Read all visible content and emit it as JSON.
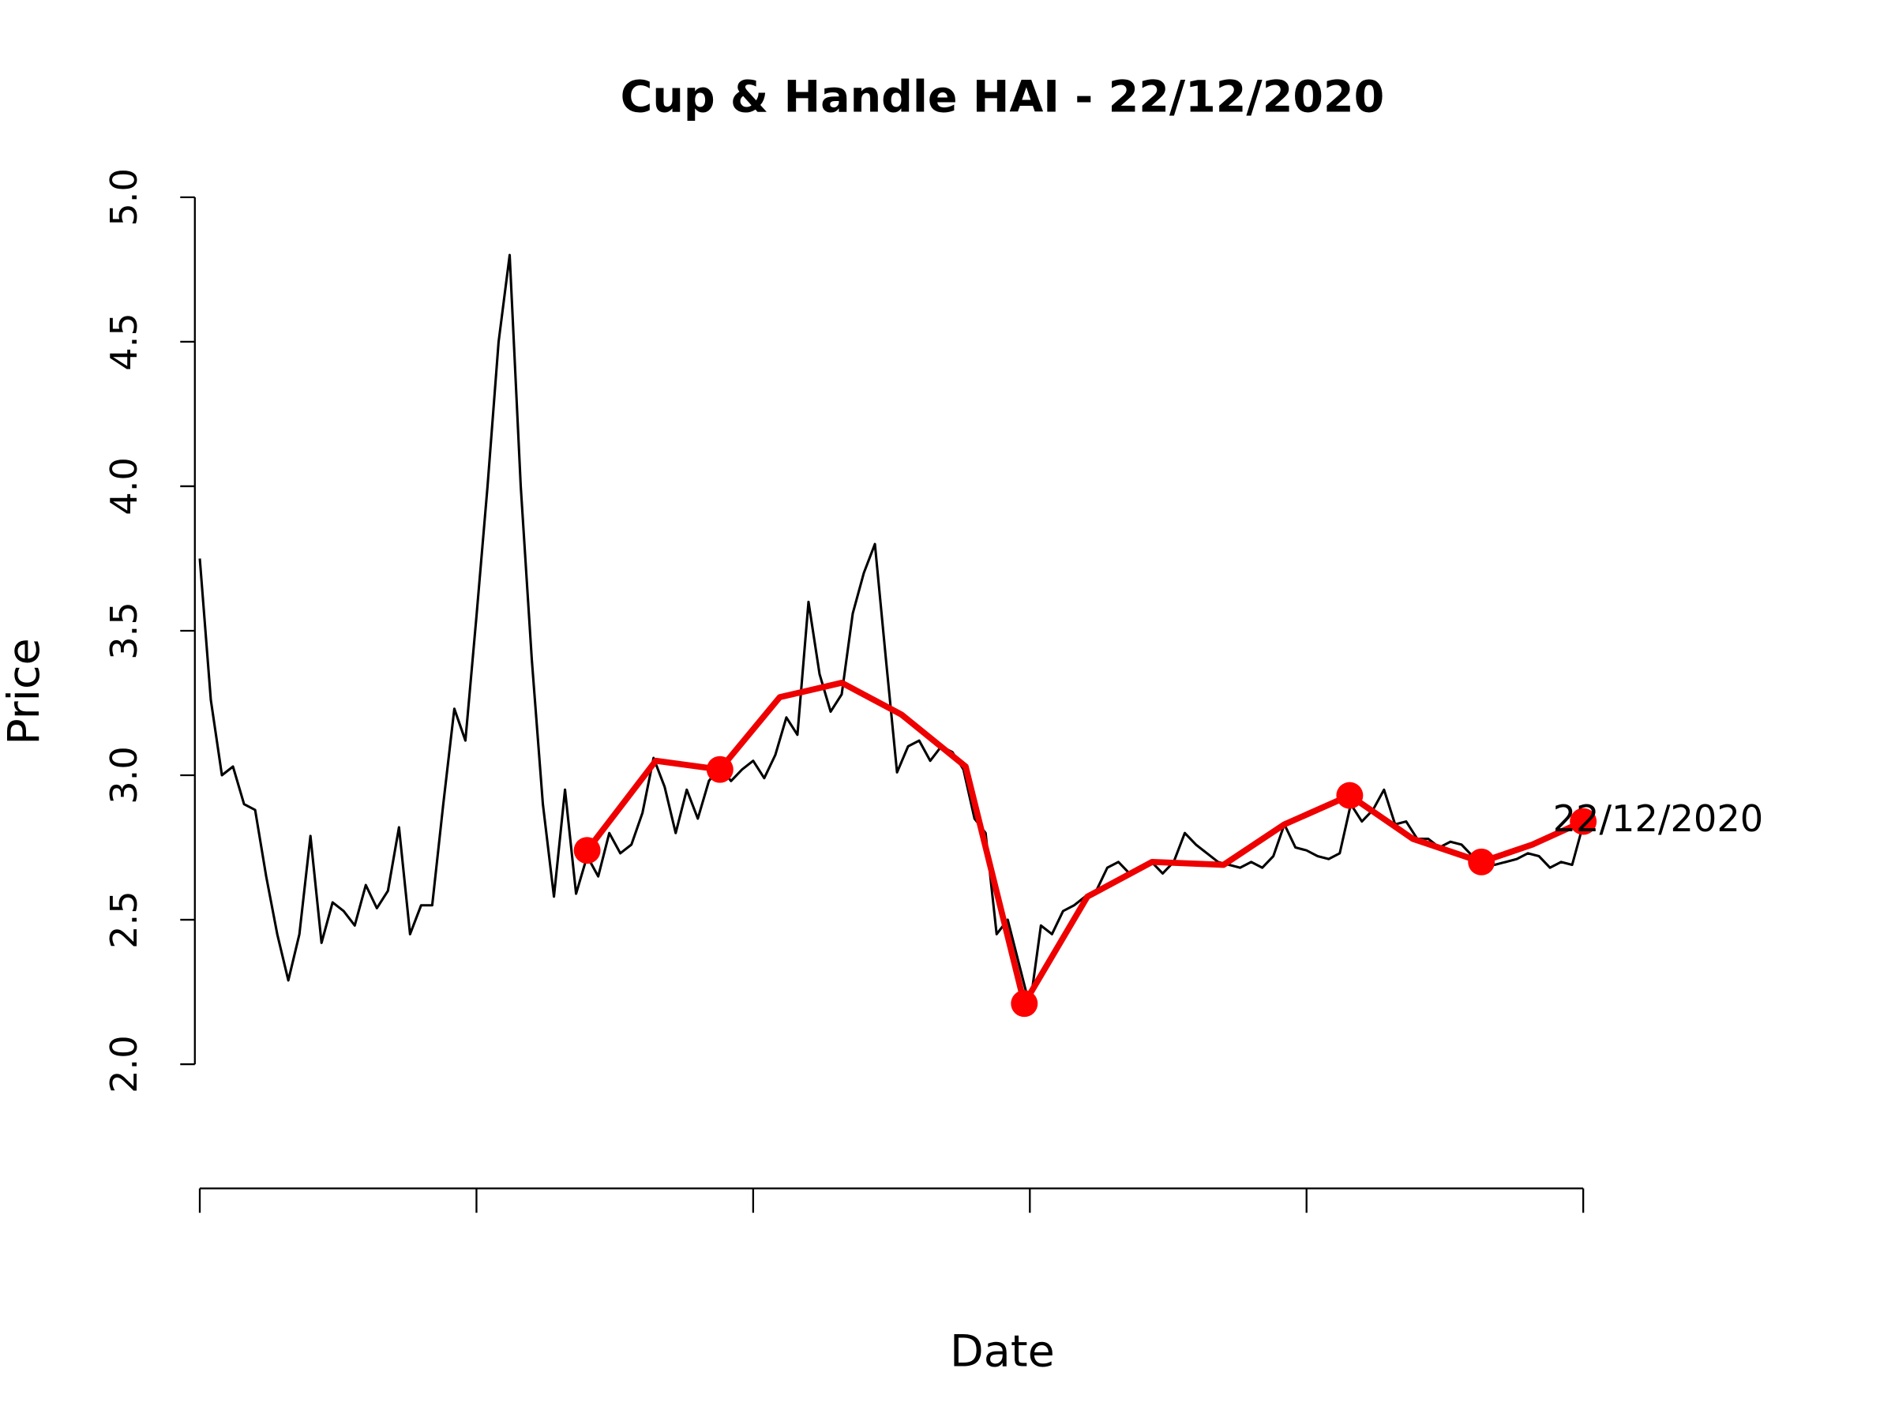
{
  "chart_data": {
    "type": "line",
    "title": "Cup & Handle HAI - 22/12/2020",
    "x_label": "Date",
    "y_label": "Price",
    "annotation": "22/12/2020",
    "xlim": [
      -0.5,
      125
    ],
    "xticks": [
      0,
      25,
      50,
      75,
      100,
      125
    ],
    "ylim": [
      2.0,
      5.0
    ],
    "yticks": [
      {
        "value": 2,
        "label": "2.0"
      },
      {
        "value": 2.5,
        "label": "2.5"
      },
      {
        "value": 3,
        "label": "3.0"
      },
      {
        "value": 3.5,
        "label": "3.5"
      },
      {
        "value": 4,
        "label": "4.0"
      },
      {
        "value": 4.5,
        "label": "4.5"
      },
      {
        "value": 5,
        "label": "5.0"
      }
    ],
    "series": [
      {
        "color": "#000000",
        "line_width": 2,
        "markers": false,
        "x": [
          0,
          1,
          2,
          3,
          4,
          5,
          6,
          7,
          8,
          9,
          10,
          11,
          12,
          13,
          14,
          15,
          16,
          17,
          18,
          19,
          20,
          21,
          22,
          23,
          24,
          25,
          26,
          27,
          28,
          29,
          30,
          31,
          32,
          33,
          34,
          35,
          36,
          37,
          38,
          39,
          40,
          41,
          42,
          43,
          44,
          45,
          46,
          47,
          48,
          49,
          50,
          51,
          52,
          53,
          54,
          55,
          56,
          57,
          58,
          59,
          60,
          61,
          62,
          63,
          64,
          65,
          66,
          67,
          68,
          69,
          70,
          71,
          72,
          73,
          74,
          75,
          76,
          77,
          78,
          79,
          80,
          81,
          82,
          83,
          84,
          85,
          86,
          87,
          88,
          89,
          90,
          91,
          92,
          93,
          94,
          95,
          96,
          97,
          98,
          99,
          100,
          101,
          102,
          103,
          104,
          105,
          106,
          107,
          108,
          109,
          110,
          111,
          112,
          113,
          114,
          115,
          116,
          117,
          118,
          119,
          120,
          121,
          122,
          123,
          124,
          125
        ],
        "values": [
          3.75,
          3.26,
          3.0,
          3.03,
          2.9,
          2.88,
          2.65,
          2.45,
          2.29,
          2.45,
          2.79,
          2.42,
          2.56,
          2.53,
          2.48,
          2.62,
          2.54,
          2.6,
          2.82,
          2.45,
          2.55,
          2.55,
          2.9,
          3.23,
          3.12,
          3.55,
          4.0,
          4.5,
          4.8,
          4.0,
          3.4,
          2.9,
          2.58,
          2.95,
          2.59,
          2.72,
          2.65,
          2.8,
          2.73,
          2.76,
          2.87,
          3.06,
          2.96,
          2.8,
          2.95,
          2.85,
          2.98,
          3.03,
          2.98,
          3.02,
          3.05,
          2.99,
          3.07,
          3.2,
          3.14,
          3.6,
          3.35,
          3.22,
          3.28,
          3.56,
          3.7,
          3.8,
          3.4,
          3.01,
          3.1,
          3.12,
          3.05,
          3.1,
          3.08,
          3.02,
          2.85,
          2.8,
          2.45,
          2.5,
          2.35,
          2.2,
          2.48,
          2.45,
          2.53,
          2.55,
          2.58,
          2.6,
          2.68,
          2.7,
          2.66,
          2.68,
          2.7,
          2.66,
          2.7,
          2.8,
          2.76,
          2.73,
          2.7,
          2.69,
          2.68,
          2.7,
          2.68,
          2.72,
          2.83,
          2.75,
          2.74,
          2.72,
          2.71,
          2.73,
          2.9,
          2.84,
          2.88,
          2.95,
          2.83,
          2.84,
          2.78,
          2.78,
          2.75,
          2.77,
          2.76,
          2.72,
          2.7,
          2.69,
          2.7,
          2.71,
          2.73,
          2.72,
          2.68,
          2.7,
          2.69,
          2.83
        ]
      },
      {
        "color": "#ee0000",
        "line_width": 5,
        "markers": false,
        "x": [
          35,
          41.2,
          47,
          52.4,
          58,
          63.4,
          69.2,
          74.5,
          80.2,
          86.05,
          92.5,
          98,
          103.9,
          109.6,
          115.8,
          120.4,
          125
        ],
        "values": [
          2.74,
          3.05,
          3.02,
          3.27,
          3.32,
          3.21,
          3.03,
          2.21,
          2.58,
          2.7,
          2.69,
          2.83,
          2.93,
          2.78,
          2.7,
          2.76,
          2.84
        ]
      },
      {
        "color": "#ff0000",
        "line_width": 0,
        "markers": true,
        "x": [
          35,
          47,
          74.5,
          103.9,
          115.8,
          125
        ],
        "values": [
          2.74,
          3.02,
          2.21,
          2.93,
          2.7,
          2.84
        ]
      }
    ]
  }
}
